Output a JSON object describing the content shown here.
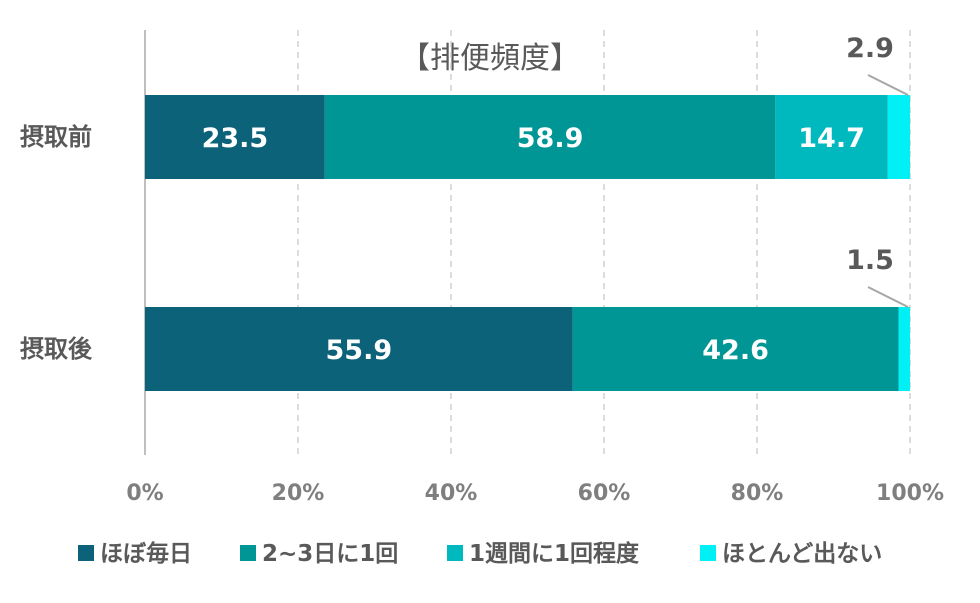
{
  "chart_data": {
    "type": "bar",
    "orientation": "horizontal",
    "stacked": true,
    "title": "【排便頻度】",
    "categories": [
      "摂取前",
      "摂取後"
    ],
    "series": [
      {
        "name": "ほぼ毎日",
        "color": "#0b6279",
        "values": [
          23.5,
          55.9
        ]
      },
      {
        "name": "2~3日に1回",
        "color": "#009696",
        "values": [
          58.9,
          42.6
        ]
      },
      {
        "name": "1週間に1回程度",
        "color": "#00b9be",
        "values": [
          14.7,
          0
        ]
      },
      {
        "name": "ほとんど出ない",
        "color": "#00f0f5",
        "values": [
          2.9,
          1.5
        ]
      }
    ],
    "data_labels": [
      [
        "23.5",
        "58.9",
        "14.7",
        "2.9"
      ],
      [
        "55.9",
        "42.6",
        "",
        "1.5"
      ]
    ],
    "x_ticks": [
      "0%",
      "20%",
      "40%",
      "60%",
      "80%",
      "100%"
    ],
    "xlim": [
      0,
      100
    ],
    "grid": true,
    "legend_position": "bottom"
  }
}
